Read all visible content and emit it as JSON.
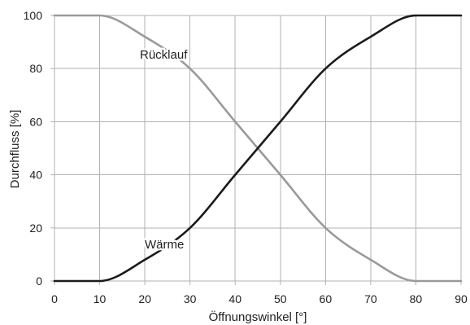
{
  "chart_data": {
    "type": "line",
    "x": [
      0,
      10,
      20,
      30,
      40,
      50,
      60,
      70,
      80,
      90
    ],
    "series": [
      {
        "name": "Rücklauf",
        "values": [
          100,
          100,
          92,
          80,
          60,
          40,
          20,
          8,
          0,
          0
        ],
        "color": "#9a9a9a"
      },
      {
        "name": "Wärme",
        "values": [
          0,
          0,
          8,
          20,
          40,
          60,
          80,
          92,
          100,
          100
        ],
        "color": "#1b1b1b"
      }
    ],
    "xlabel": "Öffnungswinkel [°]",
    "ylabel": "Durchfluss [%]",
    "xlim": [
      0,
      90
    ],
    "ylim": [
      0,
      100
    ],
    "xticks": [
      0,
      10,
      20,
      30,
      40,
      50,
      60,
      70,
      80,
      90
    ],
    "yticks": [
      0,
      20,
      40,
      60,
      80,
      100
    ],
    "grid": true,
    "legend": "none"
  },
  "colors": {
    "grid": "#b2b2b2",
    "text": "#1f1f1f"
  }
}
